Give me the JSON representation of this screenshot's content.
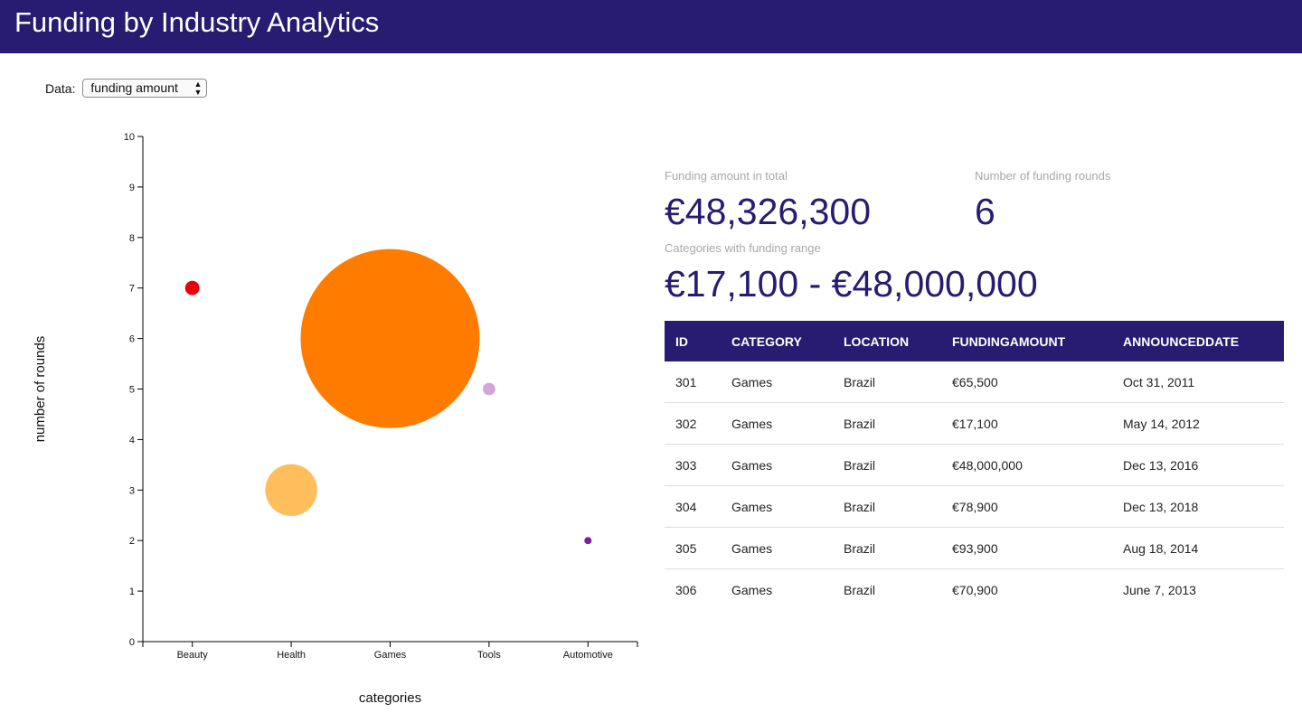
{
  "header": {
    "title": "Funding by Industry Analytics"
  },
  "controls": {
    "data_label": "Data:",
    "data_selected": "funding amount"
  },
  "stats": {
    "total_caption": "Funding amount in total",
    "total_value": "€48,326,300",
    "rounds_caption": "Number of funding rounds",
    "rounds_value": "6",
    "range_caption": "Categories with funding range",
    "range_value": "€17,100 - €48,000,000"
  },
  "table": {
    "headers": [
      "ID",
      "CATEGORY",
      "LOCATION",
      "FUNDINGAMOUNT",
      "ANNOUNCEDDATE"
    ],
    "rows": [
      [
        "301",
        "Games",
        "Brazil",
        "€65,500",
        "Oct 31, 2011"
      ],
      [
        "302",
        "Games",
        "Brazil",
        "€17,100",
        "May 14, 2012"
      ],
      [
        "303",
        "Games",
        "Brazil",
        "€48,000,000",
        "Dec 13, 2016"
      ],
      [
        "304",
        "Games",
        "Brazil",
        "€78,900",
        "Dec 13, 2018"
      ],
      [
        "305",
        "Games",
        "Brazil",
        "€93,900",
        "Aug 18, 2014"
      ],
      [
        "306",
        "Games",
        "Brazil",
        "€70,900",
        "June 7, 2013"
      ]
    ]
  },
  "chart_data": {
    "type": "scatter",
    "title": "",
    "xlabel": "categories",
    "ylabel": "number of rounds",
    "categories": [
      "Beauty",
      "Health",
      "Games",
      "Tools",
      "Automotive"
    ],
    "ylim": [
      0,
      10
    ],
    "yticks": [
      0,
      1,
      2,
      3,
      4,
      5,
      6,
      7,
      8,
      9,
      10
    ],
    "points": [
      {
        "category": "Beauty",
        "y": 7,
        "size_rel": 0.08,
        "color": "#e8000b"
      },
      {
        "category": "Health",
        "y": 3,
        "size_rel": 0.29,
        "color": "#ffbe5c"
      },
      {
        "category": "Games",
        "y": 6,
        "size_rel": 1.0,
        "color": "#ff7c00"
      },
      {
        "category": "Tools",
        "y": 5,
        "size_rel": 0.07,
        "color": "#d4a6d8"
      },
      {
        "category": "Automotive",
        "y": 2,
        "size_rel": 0.04,
        "color": "#7a1fa2"
      }
    ]
  }
}
